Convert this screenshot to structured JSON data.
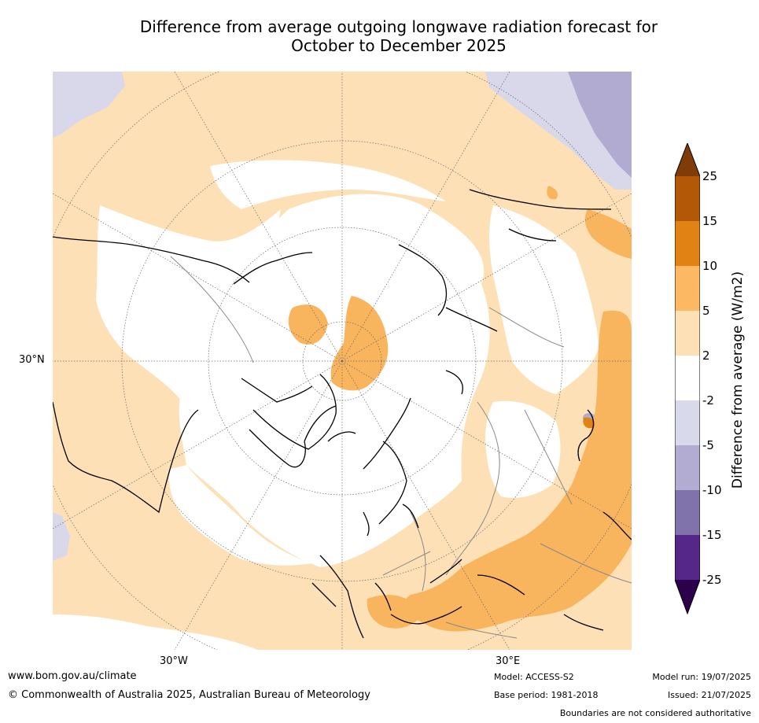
{
  "title": {
    "line1": "Difference from average outgoing longwave radiation forecast for",
    "line2": "October to December 2025"
  },
  "map": {
    "projection": "north-polar-stereographic",
    "lat_label": "30°N",
    "lon_labels": {
      "west": "30°W",
      "east": "30°E"
    },
    "colors": {
      "background": "#ffffff",
      "pale_orange": "#fde0b6",
      "light_orange": "#f9b45e",
      "orange": "#f0892c",
      "pale_purple": "#d8d8ea",
      "light_purple": "#b1abd1",
      "mid_purple": "#8073ac",
      "coast": "#000000",
      "borders": "#888888",
      "graticule": "#666666"
    }
  },
  "colorbar": {
    "title": "Difference from average (W/m2)",
    "ticks": [
      "25",
      "15",
      "10",
      "5",
      "2",
      "-2",
      "-5",
      "-10",
      "-15",
      "-25"
    ],
    "bins": [
      {
        "range": "15 to 25",
        "color": "#b35806"
      },
      {
        "range": "10 to 15",
        "color": "#e08214"
      },
      {
        "range": "5 to 10",
        "color": "#fdb863"
      },
      {
        "range": "2 to 5",
        "color": "#fee0b6"
      },
      {
        "range": "-2 to 2",
        "color": "#ffffff"
      },
      {
        "range": "-5 to -2",
        "color": "#d8daeb"
      },
      {
        "range": "-10 to -5",
        "color": "#b2abd2"
      },
      {
        "range": "-15 to -10",
        "color": "#8073ac"
      },
      {
        "range": "-25 to -15",
        "color": "#542788"
      }
    ],
    "extend_max_color": "#7f3b08",
    "extend_min_color": "#2d004b"
  },
  "footer": {
    "website": "www.bom.gov.au/climate",
    "copyright": "© Commonwealth of Australia 2025, Australian Bureau of Meteorology",
    "model": "Model: ACCESS-S2",
    "base_period": "Base period: 1981-2018",
    "model_run": "Model run: 19/07/2025",
    "issued": "Issued: 21/07/2025",
    "disclaimer": "Boundaries are not considered authoritative"
  }
}
